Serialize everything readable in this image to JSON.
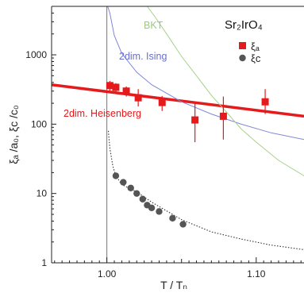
{
  "chart_data": {
    "type": "scatter",
    "title": "Sr₂IrO₄",
    "xlabel": "T / Tₙ",
    "ylabel": "ξₐ /a₀, ξᴄ /c₀",
    "xlim": [
      0.963,
      1.132
    ],
    "ylim": [
      1,
      5000
    ],
    "y_scale": "log",
    "x_ticks": [
      1.0,
      1.1
    ],
    "x_tick_labels": [
      "1.00",
      "1.10"
    ],
    "y_ticks": [
      1,
      10,
      100,
      1000
    ],
    "y_tick_labels": [
      "1",
      "10",
      "100",
      "1000"
    ],
    "grid": false,
    "legend_position": "top-right",
    "legend": [
      {
        "label": "ξₐ",
        "marker": "square",
        "color": "#e41a1c"
      },
      {
        "label": "ξᴄ",
        "marker": "circle",
        "color": "#555555"
      }
    ],
    "series": [
      {
        "name": "ξₐ",
        "marker": "square",
        "color": "#e41a1c",
        "x": [
          1.002,
          1.006,
          1.013,
          1.021,
          1.037,
          1.059,
          1.078,
          1.106
        ],
        "y": [
          360,
          340,
          300,
          240,
          205,
          115,
          130,
          210
        ],
        "y_err_low": [
          60,
          50,
          50,
          60,
          50,
          60,
          70,
          70
        ],
        "y_err_high": [
          60,
          50,
          50,
          80,
          50,
          90,
          120,
          110
        ]
      },
      {
        "name": "ξᴄ",
        "marker": "circle",
        "color": "#555555",
        "x": [
          1.006,
          1.011,
          1.016,
          1.02,
          1.024,
          1.027,
          1.03,
          1.035,
          1.044,
          1.051
        ],
        "y": [
          18.0,
          14.5,
          12.0,
          10.0,
          8.3,
          6.8,
          6.2,
          5.5,
          4.4,
          3.6
        ]
      }
    ],
    "curves": [
      {
        "label": "2dim. Heisenberg",
        "color": "#e41a1c",
        "style": "solid-thick",
        "x": [
          0.963,
          1.132
        ],
        "y": [
          370,
          130
        ]
      },
      {
        "label": "2dim. Ising",
        "color": "#8088d8",
        "style": "solid-thin",
        "x": [
          1.0005,
          1.002,
          1.005,
          1.01,
          1.02,
          1.03,
          1.05,
          1.07,
          1.09,
          1.11,
          1.132
        ],
        "y": [
          5000,
          4000,
          1900,
          1050,
          560,
          370,
          210,
          140,
          100,
          75,
          60
        ]
      },
      {
        "label": "BKT",
        "color": "#a8d08a",
        "style": "solid-thin",
        "x": [
          1.027,
          1.032,
          1.04,
          1.05,
          1.06,
          1.07,
          1.08,
          1.09,
          1.1,
          1.115,
          1.132
        ],
        "y": [
          5000,
          3600,
          2000,
          950,
          500,
          260,
          150,
          85,
          55,
          30,
          18
        ]
      },
      {
        "label": "",
        "color": "#333333",
        "style": "dotted",
        "x": [
          1.001,
          1.002,
          1.004,
          1.006,
          1.01,
          1.02,
          1.03,
          1.05,
          1.07,
          1.09,
          1.11,
          1.132
        ],
        "y": [
          80,
          45,
          25,
          18,
          13.5,
          10.5,
          7.5,
          4.2,
          2.8,
          2.2,
          1.8,
          1.55
        ]
      }
    ],
    "vertical_line": {
      "x": 1.0,
      "color": "#777777"
    },
    "annotations": [
      {
        "text": "BKT",
        "color": "#9acb78"
      },
      {
        "text": "2dim. Ising",
        "color": "#6870cc"
      },
      {
        "text": "2dim. Heisenberg",
        "color": "#e41a1c"
      }
    ]
  }
}
